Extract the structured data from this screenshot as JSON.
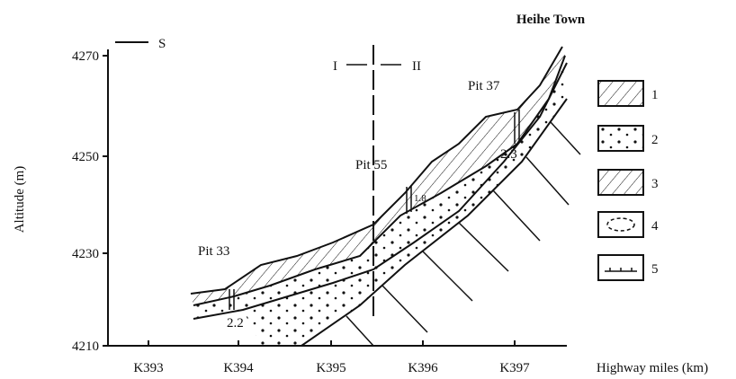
{
  "figure": {
    "y_axis": {
      "title": "Altitude (m)",
      "ticks": [
        "4270",
        "4250",
        "4230",
        "4210"
      ]
    },
    "x_axis": {
      "title": "Highway miles (km)",
      "ticks": [
        "K393",
        "K394",
        "K395",
        "K396",
        "K397"
      ]
    },
    "orientation": "S",
    "sections": [
      "I",
      "II"
    ],
    "place": "Heihe Town",
    "pits": [
      "Pit 33",
      "Pit 55",
      "Pit 37"
    ],
    "depths": [
      "2.2",
      "1.8",
      "2.3"
    ],
    "legend": [
      "1",
      "2",
      "3",
      "4",
      "5"
    ]
  }
}
